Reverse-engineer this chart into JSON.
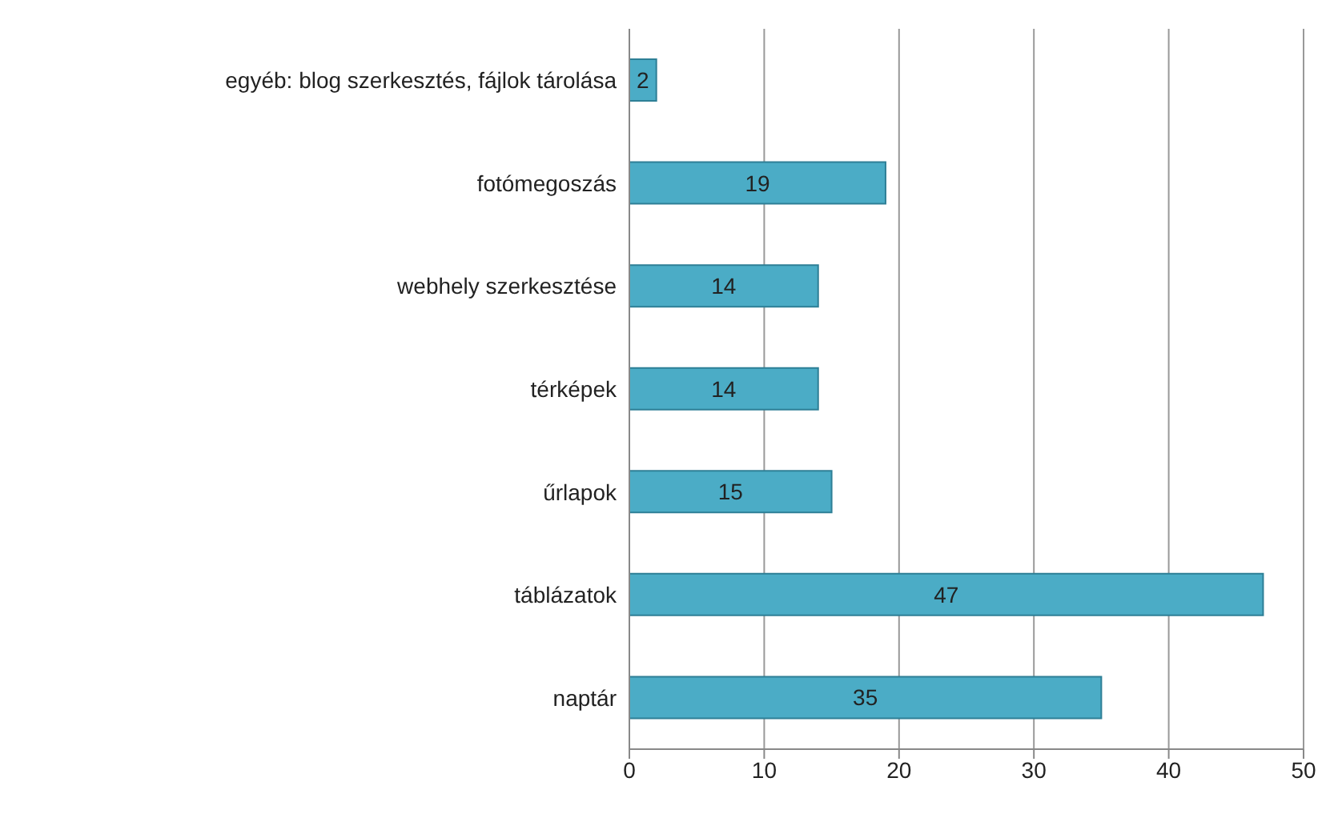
{
  "chart_data": {
    "type": "bar",
    "orientation": "horizontal",
    "categories": [
      "egyéb: blog szerkesztés, fájlok tárolása",
      "fotómegoszás",
      "webhely szerkesztése",
      "térképek",
      "űrlapok",
      "táblázatok",
      "naptár"
    ],
    "values": [
      2,
      19,
      14,
      14,
      15,
      47,
      35
    ],
    "color": "#4bacc6",
    "xlim": [
      0,
      50
    ],
    "xticks": [
      0,
      10,
      20,
      30,
      40,
      50
    ],
    "grid": "x",
    "data_labels": true
  }
}
